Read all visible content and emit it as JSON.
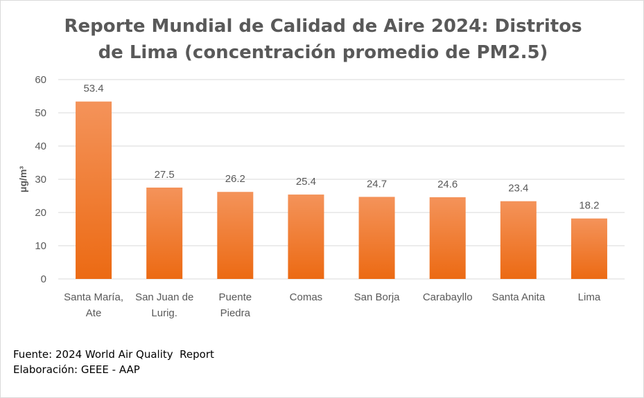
{
  "title": {
    "line1": "Reporte Mundial de Calidad de Aire 2024: Distritos",
    "line2": "de Lima (concentración promedio de PM2.5)"
  },
  "footer": {
    "source": "Fuente: 2024 World Air Quality  Report",
    "credit": "Elaboración: GEEE - AAP"
  },
  "colors": {
    "bar_top": "#f4935a",
    "bar_bottom": "#ec6a13",
    "grid": "#d9d9d9",
    "text": "#595959"
  },
  "chart_data": {
    "type": "bar",
    "categories": [
      [
        "Santa María,",
        "Ate"
      ],
      [
        "San Juan de",
        "Lurig."
      ],
      [
        "Puente",
        "Piedra"
      ],
      [
        "Comas"
      ],
      [
        "San Borja"
      ],
      [
        "Carabayllo"
      ],
      [
        "Santa Anita"
      ],
      [
        "Lima"
      ]
    ],
    "values": [
      53.4,
      27.5,
      26.2,
      25.4,
      24.7,
      24.6,
      23.4,
      18.2
    ],
    "data_labels": [
      "53.4",
      "27.5",
      "26.2",
      "25.4",
      "24.7",
      "24.6",
      "23.4",
      "18.2"
    ],
    "ylabel": "μg/m³",
    "xlabel": "",
    "ylim": [
      0,
      60
    ],
    "yticks": [
      0,
      10,
      20,
      30,
      40,
      50,
      60
    ],
    "grid": true,
    "legend": "none"
  }
}
